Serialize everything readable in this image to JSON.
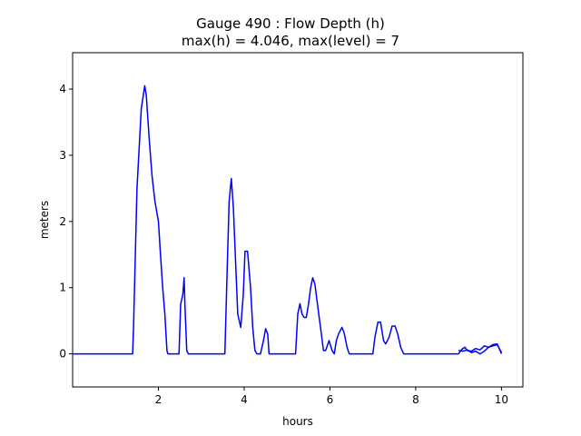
{
  "chart_data": {
    "type": "line",
    "title_line1": "Gauge 490 : Flow Depth (h)",
    "title_line2": "max(h) =   4.046,    max(level) = 7",
    "xlabel": "hours",
    "ylabel": "meters",
    "xlim": [
      0.0,
      10.5
    ],
    "ylim": [
      -0.5,
      4.55
    ],
    "xticks": [
      2,
      4,
      6,
      8,
      10
    ],
    "yticks": [
      0,
      1,
      2,
      3,
      4
    ],
    "grid": false,
    "line_color": "#0000ff",
    "series": [
      {
        "x": [
          0.0,
          1.4,
          1.42,
          1.5,
          1.6,
          1.68,
          1.72,
          1.78,
          1.85,
          1.92,
          2.0,
          2.05,
          2.1,
          2.15,
          2.2,
          2.22,
          2.3,
          2.48,
          2.52,
          2.57,
          2.6,
          2.62,
          2.64,
          2.66,
          2.7,
          3.05,
          3.55,
          3.6,
          3.65,
          3.7,
          3.75,
          3.8,
          3.85,
          3.92,
          3.98,
          4.02,
          4.08,
          4.15,
          4.2,
          4.25,
          4.3,
          4.38,
          4.45,
          4.5,
          4.55,
          4.58,
          5.0,
          5.2,
          5.25,
          5.3,
          5.35,
          5.4,
          5.45,
          5.5,
          5.55,
          5.6,
          5.65,
          5.72,
          5.8,
          5.85,
          5.9,
          5.98,
          6.05,
          6.1,
          6.15,
          6.2,
          6.28,
          6.33,
          6.4,
          6.45,
          6.5,
          7.0,
          7.05,
          7.12,
          7.18,
          7.25,
          7.3,
          7.38,
          7.45,
          7.52,
          7.58,
          7.65,
          7.72,
          7.8,
          8.0,
          9.0,
          9.05,
          9.1,
          9.15,
          9.2,
          9.3,
          9.4,
          9.5,
          9.6,
          9.7,
          9.8,
          9.9,
          10.0
        ],
        "y": [
          0.0,
          0.0,
          0.4,
          2.5,
          3.7,
          4.05,
          3.9,
          3.3,
          2.7,
          2.3,
          2.0,
          1.5,
          1.0,
          0.6,
          0.05,
          0.0,
          0.0,
          0.0,
          0.75,
          0.9,
          1.15,
          0.7,
          0.4,
          0.05,
          0.0,
          0.0,
          0.0,
          1.2,
          2.3,
          2.65,
          2.2,
          1.4,
          0.6,
          0.4,
          0.9,
          1.55,
          1.55,
          1.0,
          0.4,
          0.05,
          0.0,
          0.0,
          0.2,
          0.38,
          0.3,
          0.0,
          0.0,
          0.0,
          0.6,
          0.76,
          0.6,
          0.55,
          0.55,
          0.75,
          1.0,
          1.15,
          1.05,
          0.7,
          0.3,
          0.05,
          0.05,
          0.2,
          0.05,
          0.0,
          0.2,
          0.3,
          0.4,
          0.32,
          0.1,
          0.0,
          0.0,
          0.0,
          0.25,
          0.48,
          0.48,
          0.2,
          0.15,
          0.25,
          0.42,
          0.42,
          0.3,
          0.1,
          0.0,
          0.0,
          0.0,
          0.0,
          0.05,
          0.08,
          0.1,
          0.05,
          0.04,
          0.08,
          0.06,
          0.12,
          0.1,
          0.14,
          0.15,
          0.0
        ]
      },
      {
        "x": [
          9.0,
          9.1,
          9.2,
          9.3,
          9.4,
          9.5,
          9.6,
          9.7,
          9.8,
          9.9,
          10.0
        ],
        "y": [
          0.05,
          0.04,
          0.06,
          0.02,
          0.04,
          0.0,
          0.04,
          0.1,
          0.12,
          0.14,
          0.02
        ]
      }
    ]
  }
}
